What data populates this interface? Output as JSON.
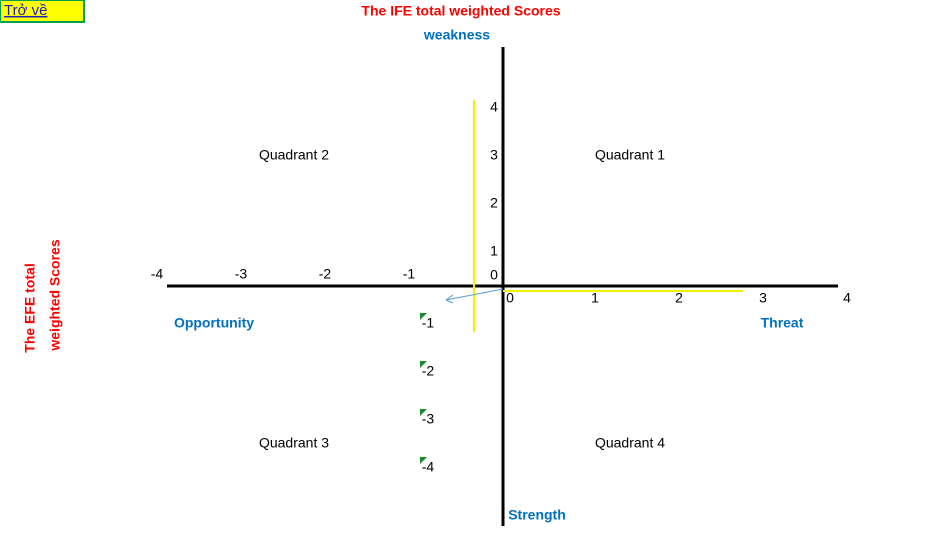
{
  "button": {
    "label": "Trở về"
  },
  "title": "The IFE total weighted Scores",
  "side_title": [
    "The EFE total",
    "weighted Scores"
  ],
  "poles": {
    "top": "weakness",
    "bottom": "Strength",
    "left": "Opportunity",
    "right": "Threat"
  },
  "quadrants": [
    "Quadrant 1",
    "Quadrant 2",
    "Quadrant 3",
    "Quadrant 4"
  ],
  "x_ticks": [
    -4,
    -3,
    -2,
    -1,
    0,
    1,
    2,
    3,
    4
  ],
  "y_ticks": [
    4,
    3,
    2,
    1,
    0,
    -1,
    -2,
    -3,
    -4
  ]
}
